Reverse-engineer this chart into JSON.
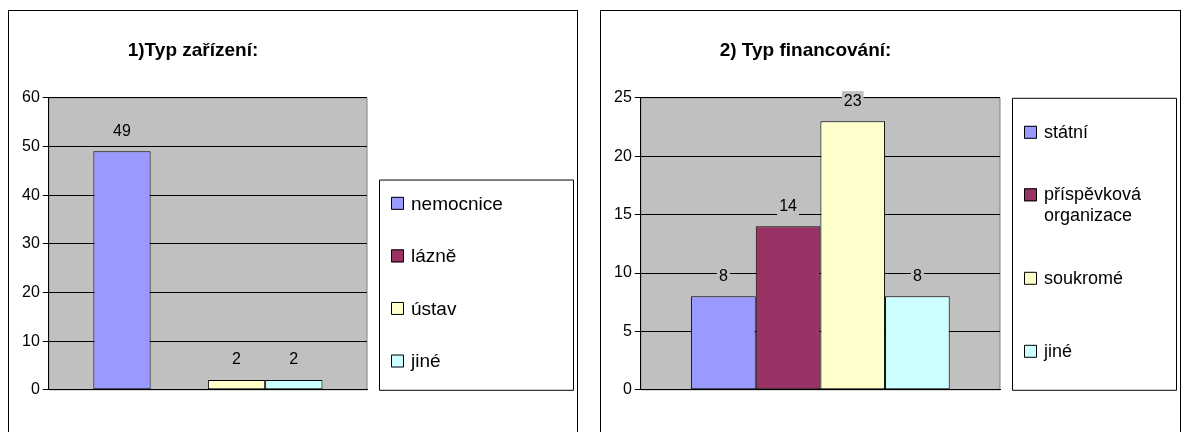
{
  "chart_data": [
    {
      "type": "bar",
      "title": "1)Typ zařízení:",
      "categories": [
        null
      ],
      "series": [
        {
          "name": "nemocnice",
          "color": "#9999ff",
          "values": [
            49
          ]
        },
        {
          "name": "lázně",
          "color": "#993366",
          "values": [
            null
          ]
        },
        {
          "name": "ústav",
          "color": "#ffffcc",
          "values": [
            2
          ]
        },
        {
          "name": "jiné",
          "color": "#ccffff",
          "values": [
            2
          ]
        }
      ],
      "ylim": [
        0,
        60
      ],
      "yticks": [
        0,
        10,
        20,
        30,
        40,
        50,
        60
      ],
      "grid": "y",
      "legend": "right",
      "data_labels": true
    },
    {
      "type": "bar",
      "title": "2) Typ financování:",
      "categories": [
        null
      ],
      "series": [
        {
          "name": "státní",
          "color": "#9999ff",
          "values": [
            8
          ]
        },
        {
          "name": "příspěvková organizace",
          "color": "#993366",
          "values": [
            14
          ]
        },
        {
          "name": "soukromé",
          "color": "#ffffcc",
          "values": [
            23
          ]
        },
        {
          "name": "jiné",
          "color": "#ccffff",
          "values": [
            8
          ]
        }
      ],
      "ylim": [
        0,
        25
      ],
      "yticks": [
        0,
        5,
        10,
        15,
        20,
        25
      ],
      "grid": "y",
      "legend": "right",
      "data_labels": true
    }
  ]
}
